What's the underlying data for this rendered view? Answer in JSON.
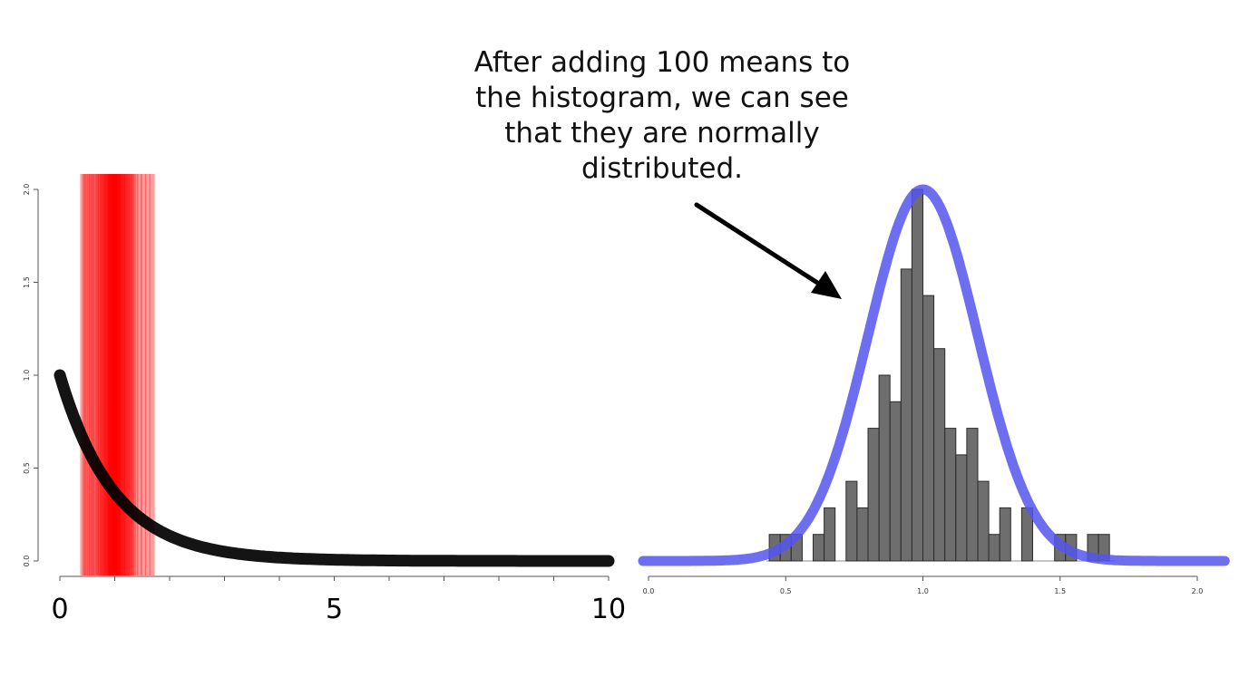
{
  "annotation": {
    "lines": [
      "After adding 100 means to",
      "the histogram, we can see",
      "that they are normally",
      "distributed."
    ]
  },
  "colors": {
    "exp_curve": "#000000",
    "mean_lines": "#ff0000",
    "normal_curve": "#5555ee",
    "hist_bars": "#6e6e6e",
    "hist_border": "#2b2b2b",
    "axis": "#555555"
  },
  "chart_data": [
    {
      "type": "line",
      "description_key": "exponential",
      "curve": "exp(-x)",
      "x_range": [
        0,
        10
      ],
      "y_range": [
        0,
        2.0
      ],
      "x_ticks": [
        0,
        5,
        10
      ],
      "x_tick_labels": [
        "0",
        "5",
        "10"
      ],
      "x_minor_ticks": [
        1,
        2,
        3,
        4,
        6,
        7,
        8,
        9
      ],
      "y_ticks": [
        0.0,
        0.5,
        1.0,
        1.5,
        2.0
      ],
      "y_tick_labels": [
        "0.0",
        "0.5",
        "1.0",
        "1.5",
        "2.0"
      ],
      "sample_means": [
        0.42,
        0.46,
        0.5,
        0.55,
        0.58,
        0.62,
        0.66,
        0.7,
        0.72,
        0.75,
        0.78,
        0.8,
        0.82,
        0.84,
        0.86,
        0.88,
        0.9,
        0.91,
        0.92,
        0.93,
        0.94,
        0.95,
        0.96,
        0.97,
        0.98,
        0.99,
        1.0,
        1.01,
        1.02,
        1.03,
        1.04,
        1.05,
        1.06,
        1.07,
        1.08,
        1.1,
        1.12,
        1.14,
        1.16,
        1.18,
        1.2,
        1.22,
        1.25,
        1.28,
        1.3,
        1.34,
        1.38,
        1.45,
        1.52,
        1.6,
        1.68
      ],
      "grid": false
    },
    {
      "type": "bar",
      "description_key": "histogram",
      "bin_width": 0.04,
      "bins": [
        {
          "start": 0.44,
          "value": 0.143
        },
        {
          "start": 0.48,
          "value": 0.143
        },
        {
          "start": 0.52,
          "value": 0.143
        },
        {
          "start": 0.6,
          "value": 0.143
        },
        {
          "start": 0.64,
          "value": 0.286
        },
        {
          "start": 0.72,
          "value": 0.429
        },
        {
          "start": 0.76,
          "value": 0.286
        },
        {
          "start": 0.8,
          "value": 0.714
        },
        {
          "start": 0.84,
          "value": 1.0
        },
        {
          "start": 0.88,
          "value": 0.857
        },
        {
          "start": 0.92,
          "value": 1.571
        },
        {
          "start": 0.96,
          "value": 2.0
        },
        {
          "start": 1.0,
          "value": 1.429
        },
        {
          "start": 1.04,
          "value": 1.143
        },
        {
          "start": 1.08,
          "value": 0.714
        },
        {
          "start": 1.12,
          "value": 0.571
        },
        {
          "start": 1.16,
          "value": 0.714
        },
        {
          "start": 1.2,
          "value": 0.429
        },
        {
          "start": 1.24,
          "value": 0.143
        },
        {
          "start": 1.28,
          "value": 0.286
        },
        {
          "start": 1.36,
          "value": 0.286
        },
        {
          "start": 1.48,
          "value": 0.143
        },
        {
          "start": 1.52,
          "value": 0.143
        },
        {
          "start": 1.6,
          "value": 0.143
        },
        {
          "start": 1.64,
          "value": 0.143
        }
      ],
      "normal_curve": {
        "mean": 1.0,
        "sd": 0.2,
        "peak": 2.0
      },
      "x_range": [
        0.0,
        2.0
      ],
      "x_ticks": [
        0.0,
        0.5,
        1.0,
        1.5,
        2.0
      ],
      "x_tick_labels": [
        "0.0",
        "0.5",
        "1.0",
        "1.5",
        "2.0"
      ],
      "y_range": [
        0,
        2.0
      ],
      "grid": false
    }
  ]
}
